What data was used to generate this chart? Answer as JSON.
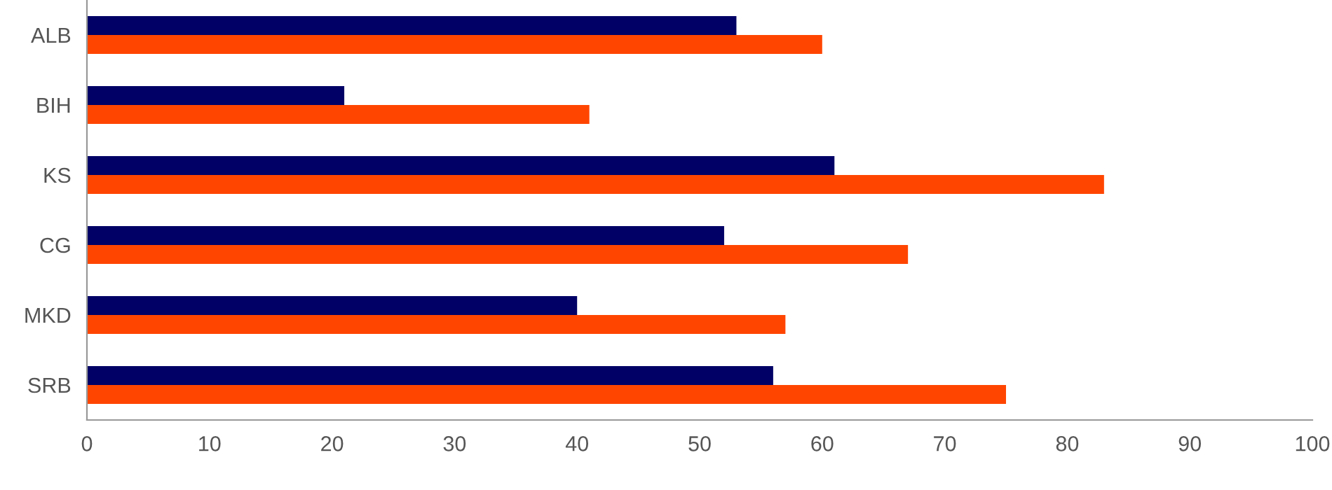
{
  "chart_data": {
    "type": "bar",
    "orientation": "horizontal",
    "categories": [
      "ALB",
      "BIH",
      "KS",
      "CG",
      "MKD",
      "SRB"
    ],
    "series": [
      {
        "color": "#000066",
        "values": [
          53,
          21,
          61,
          52,
          40,
          56
        ]
      },
      {
        "color": "#ff4500",
        "values": [
          60,
          41,
          83,
          67,
          57,
          75
        ]
      }
    ],
    "xlim": [
      0,
      100
    ],
    "xticks": [
      0,
      10,
      20,
      30,
      40,
      50,
      60,
      70,
      80,
      90,
      100
    ],
    "grid": false,
    "legend": false
  }
}
